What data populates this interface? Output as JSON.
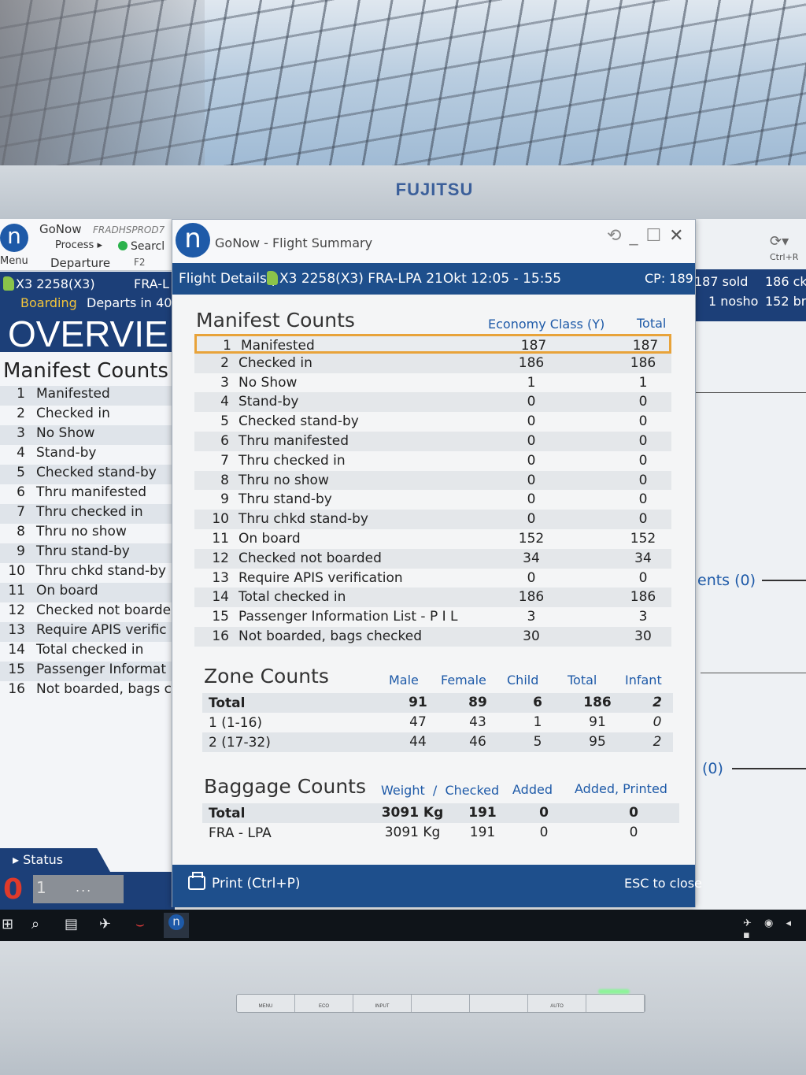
{
  "brand": "FUJITSU",
  "monitor_buttons": [
    "MENU",
    "ECO",
    "INPUT",
    "",
    "",
    "AUTO",
    ""
  ],
  "bg_app": {
    "logo": "n",
    "menu": "Menu",
    "title": "GoNow",
    "env": "FRADHSPROD7",
    "process": "Process ▸",
    "search": "Searcl",
    "departure": "Departure",
    "f2": "F2",
    "flight": "X3 2258(X3)",
    "route": "FRA-L",
    "status": "Boarding",
    "departs": "Departs in 40",
    "overview": "OVERVIE",
    "manifest_title": "Manifest Counts",
    "items": [
      {
        "n": "1",
        "label": "Manifested"
      },
      {
        "n": "2",
        "label": "Checked in"
      },
      {
        "n": "3",
        "label": "No Show"
      },
      {
        "n": "4",
        "label": "Stand-by"
      },
      {
        "n": "5",
        "label": "Checked stand-by"
      },
      {
        "n": "6",
        "label": "Thru manifested"
      },
      {
        "n": "7",
        "label": "Thru checked in"
      },
      {
        "n": "8",
        "label": "Thru no show"
      },
      {
        "n": "9",
        "label": "Thru stand-by"
      },
      {
        "n": "10",
        "label": "Thru chkd stand-by"
      },
      {
        "n": "11",
        "label": "On board"
      },
      {
        "n": "12",
        "label": "Checked not boarde"
      },
      {
        "n": "13",
        "label": "Require APIS verific"
      },
      {
        "n": "14",
        "label": "Total checked in"
      },
      {
        "n": "15",
        "label": "Passenger Informat"
      },
      {
        "n": "16",
        "label": "Not boarded, bags c"
      }
    ],
    "status_tab": "Status",
    "status_zero": "0",
    "status_one": "1",
    "status_dots": "..."
  },
  "bg_right": {
    "refresh": "⟳▾",
    "ctrlr": "Ctrl+R",
    "sold": "187 sold",
    "ckd": "186 ck",
    "nosho": "1 nosho",
    "br": "152 br",
    "count1": "ents (0)",
    "count2": "(0)"
  },
  "dialog": {
    "logo": "n",
    "title": "GoNow - Flight Summary",
    "details_label": "Flight Details |",
    "flight": "X3 2258(X3)  FRA-LPA  21Okt 12:05 - 15:55",
    "cp": "CP: 189",
    "manifest": {
      "title": "Manifest Counts",
      "col_economy": "Economy Class (Y)",
      "col_total": "Total",
      "rows": [
        {
          "n": "1",
          "label": "Manifested",
          "economy": "187",
          "total": "187"
        },
        {
          "n": "2",
          "label": "Checked in",
          "economy": "186",
          "total": "186"
        },
        {
          "n": "3",
          "label": "No Show",
          "economy": "1",
          "total": "1"
        },
        {
          "n": "4",
          "label": "Stand-by",
          "economy": "0",
          "total": "0"
        },
        {
          "n": "5",
          "label": "Checked stand-by",
          "economy": "0",
          "total": "0"
        },
        {
          "n": "6",
          "label": "Thru manifested",
          "economy": "0",
          "total": "0"
        },
        {
          "n": "7",
          "label": "Thru checked in",
          "economy": "0",
          "total": "0"
        },
        {
          "n": "8",
          "label": "Thru no show",
          "economy": "0",
          "total": "0"
        },
        {
          "n": "9",
          "label": "Thru stand-by",
          "economy": "0",
          "total": "0"
        },
        {
          "n": "10",
          "label": "Thru chkd stand-by",
          "economy": "0",
          "total": "0"
        },
        {
          "n": "11",
          "label": "On board",
          "economy": "152",
          "total": "152"
        },
        {
          "n": "12",
          "label": "Checked not boarded",
          "economy": "34",
          "total": "34"
        },
        {
          "n": "13",
          "label": "Require APIS verification",
          "economy": "0",
          "total": "0"
        },
        {
          "n": "14",
          "label": "Total checked in",
          "economy": "186",
          "total": "186"
        },
        {
          "n": "15",
          "label": "Passenger Information List - P I L",
          "economy": "3",
          "total": "3"
        },
        {
          "n": "16",
          "label": "Not boarded, bags checked",
          "economy": "30",
          "total": "30"
        }
      ]
    },
    "zone": {
      "title": "Zone Counts",
      "cols": [
        "Male",
        "Female",
        "Child",
        "Total",
        "Infant"
      ],
      "rows": [
        {
          "label": "Total",
          "male": "91",
          "female": "89",
          "child": "6",
          "total": "186",
          "infant": "2"
        },
        {
          "label": "1 (1-16)",
          "male": "47",
          "female": "43",
          "child": "1",
          "total": "91",
          "infant": "0"
        },
        {
          "label": "2 (17-32)",
          "male": "44",
          "female": "46",
          "child": "5",
          "total": "95",
          "infant": "2"
        }
      ]
    },
    "baggage": {
      "title": "Baggage Counts",
      "col_weight": "Weight",
      "col_slash": "/",
      "col_checked": "Checked",
      "col_added": "Added",
      "col_added_printed": "Added, Printed",
      "rows": [
        {
          "label": "Total",
          "weight": "3091 Kg",
          "checked": "191",
          "added": "0",
          "added_printed": "0"
        },
        {
          "label": "FRA - LPA",
          "weight": "3091 Kg",
          "checked": "191",
          "added": "0",
          "added_printed": "0"
        }
      ]
    },
    "print_label": "Print (Ctrl+P)",
    "esc_label": "ESC to close"
  },
  "taskbar": {
    "icons": [
      "windows-icon",
      "search-icon",
      "task-view-icon",
      "airplane-icon",
      "app-red-icon",
      "gonow-icon"
    ]
  }
}
